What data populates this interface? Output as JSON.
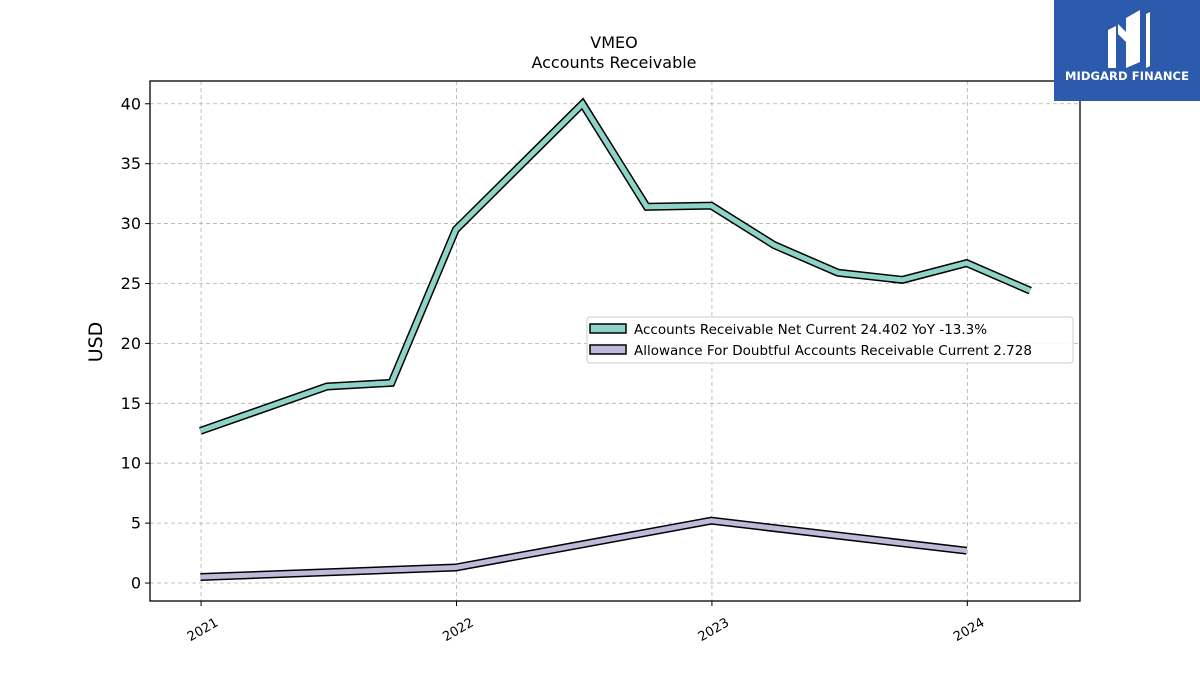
{
  "brand": {
    "name": "MIDGARD FINANCE",
    "bg_color": "#2c5aad"
  },
  "chart_data": {
    "type": "line",
    "title": "VMEO",
    "subtitle": "Accounts Receivable",
    "xlabel": "",
    "ylabel": "USD",
    "x_tick_labels": [
      "2021",
      "2022",
      "2023",
      "2024"
    ],
    "y_ticks": [
      0,
      5,
      10,
      15,
      20,
      25,
      30,
      35,
      40
    ],
    "xlim": [
      "2020-10-20",
      "2024-06-10"
    ],
    "ylim": [
      -1.5,
      41.9
    ],
    "grid": true,
    "legend_position": "center-right",
    "series": [
      {
        "name": "Accounts Receivable Net Current  24.402 YoY -13.3%",
        "color": "#8dd3c7",
        "points": [
          [
            "2020-12-31",
            12.7
          ],
          [
            "2021-06-30",
            16.4
          ],
          [
            "2021-09-30",
            16.7
          ],
          [
            "2021-12-31",
            29.5
          ],
          [
            "2022-06-30",
            40.0
          ],
          [
            "2022-09-30",
            31.4
          ],
          [
            "2022-12-31",
            31.5
          ],
          [
            "2023-03-31",
            28.2
          ],
          [
            "2023-06-30",
            25.9
          ],
          [
            "2023-09-30",
            25.3
          ],
          [
            "2023-12-31",
            26.7
          ],
          [
            "2024-03-31",
            24.4
          ]
        ]
      },
      {
        "name": "Allowance For Doubtful Accounts Receivable Current  2.728",
        "color": "#bebada",
        "points": [
          [
            "2020-12-31",
            0.5
          ],
          [
            "2021-12-31",
            1.3
          ],
          [
            "2022-12-31",
            5.2
          ],
          [
            "2023-12-31",
            2.7
          ]
        ]
      }
    ]
  }
}
